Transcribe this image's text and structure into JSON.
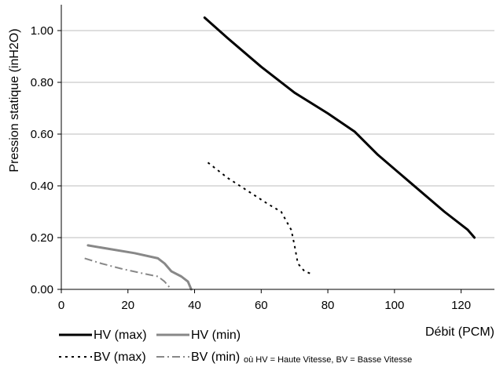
{
  "chart_data": {
    "type": "line",
    "xlabel": "Débit (PCM)",
    "ylabel": "Pression statique (inH2O)",
    "xlim": [
      0,
      130
    ],
    "ylim": [
      0,
      1.1
    ],
    "x_ticks": [
      {
        "value": 0,
        "label": "0"
      },
      {
        "value": 20,
        "label": "20"
      },
      {
        "value": 40,
        "label": "40"
      },
      {
        "value": 60,
        "label": "60"
      },
      {
        "value": 80,
        "label": "80"
      },
      {
        "value": 100,
        "label": "100"
      },
      {
        "value": 120,
        "label": "120"
      }
    ],
    "y_ticks": [
      {
        "value": 0,
        "label": "0.00"
      },
      {
        "value": 0.2,
        "label": "0.20"
      },
      {
        "value": 0.4,
        "label": "0.40"
      },
      {
        "value": 0.6,
        "label": "0.60"
      },
      {
        "value": 0.8,
        "label": "0.80"
      },
      {
        "value": 1.0,
        "label": "1.00"
      }
    ],
    "grid": "horizontal",
    "legend_position": "bottom",
    "legend_note": "où HV = Haute Vitesse, BV = Basse Vitesse",
    "series": [
      {
        "name": "HV (max)",
        "color": "#000000",
        "style": "solid",
        "points": [
          [
            43,
            1.05
          ],
          [
            50,
            0.97
          ],
          [
            60,
            0.86
          ],
          [
            70,
            0.76
          ],
          [
            80,
            0.68
          ],
          [
            88,
            0.61
          ],
          [
            95,
            0.52
          ],
          [
            105,
            0.41
          ],
          [
            115,
            0.3
          ],
          [
            122,
            0.23
          ],
          [
            124,
            0.2
          ]
        ]
      },
      {
        "name": "HV (min)",
        "color": "#888888",
        "style": "solid",
        "points": [
          [
            8,
            0.17
          ],
          [
            15,
            0.155
          ],
          [
            22,
            0.14
          ],
          [
            29,
            0.12
          ],
          [
            31,
            0.1
          ],
          [
            33,
            0.07
          ],
          [
            36,
            0.05
          ],
          [
            38,
            0.03
          ],
          [
            39,
            0.0
          ]
        ]
      },
      {
        "name": "BV (max)",
        "color": "#000000",
        "style": "dotted",
        "points": [
          [
            44,
            0.49
          ],
          [
            50,
            0.43
          ],
          [
            56,
            0.38
          ],
          [
            62,
            0.33
          ],
          [
            66,
            0.3
          ],
          [
            69,
            0.23
          ],
          [
            70,
            0.17
          ],
          [
            71,
            0.1
          ],
          [
            73,
            0.07
          ],
          [
            75,
            0.06
          ]
        ]
      },
      {
        "name": "BV (min)",
        "color": "#888888",
        "style": "dashdot",
        "points": [
          [
            7,
            0.12
          ],
          [
            12,
            0.1
          ],
          [
            18,
            0.08
          ],
          [
            25,
            0.06
          ],
          [
            29,
            0.05
          ],
          [
            31,
            0.03
          ],
          [
            33,
            0.0
          ]
        ]
      }
    ]
  }
}
